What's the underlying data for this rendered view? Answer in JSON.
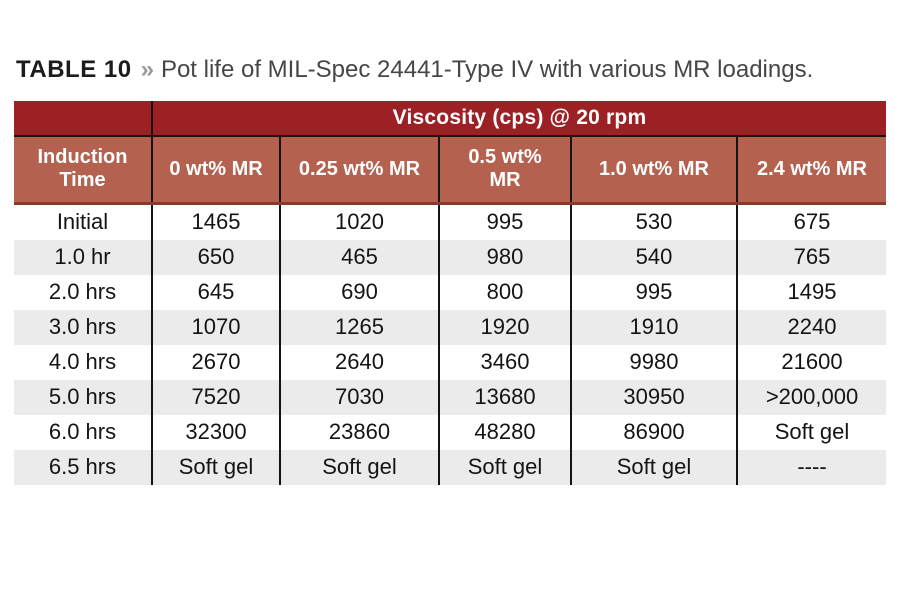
{
  "title": {
    "label": "TABLE 10",
    "separator": "»",
    "text": "Pot life of MIL-Spec 24441-Type IV with various MR loadings."
  },
  "chart_data": {
    "type": "table",
    "title": "Pot life of MIL-Spec 24441-Type IV with various MR loadings.",
    "span_header": "Viscosity (cps) @ 20 rpm",
    "columns": [
      "Induction\nTime",
      "0 wt% MR",
      "0.25 wt% MR",
      "0.5 wt%\nMR",
      "1.0 wt% MR",
      "2.4 wt% MR"
    ],
    "rows": [
      [
        "Initial",
        "1465",
        "1020",
        "995",
        "530",
        "675"
      ],
      [
        "1.0 hr",
        "650",
        "465",
        "980",
        "540",
        "765"
      ],
      [
        "2.0 hrs",
        "645",
        "690",
        "800",
        "995",
        "1495"
      ],
      [
        "3.0 hrs",
        "1070",
        "1265",
        "1920",
        "1910",
        "2240"
      ],
      [
        "4.0 hrs",
        "2670",
        "2640",
        "3460",
        "9980",
        "21600"
      ],
      [
        "5.0 hrs",
        "7520",
        "7030",
        "13680",
        "30950",
        ">200,000"
      ],
      [
        "6.0 hrs",
        "32300",
        "23860",
        "48280",
        "86900",
        "Soft gel"
      ],
      [
        "6.5 hrs",
        "Soft gel",
        "Soft gel",
        "Soft gel",
        "Soft gel",
        "----"
      ]
    ]
  },
  "colors": {
    "header_dark_red": "#9d2025",
    "header_terracotta": "#b4614f",
    "header_bottom_divider": "#8a3a2b",
    "row_stripe_gray": "#ebebeb",
    "border_black": "#141414",
    "title_separator_gray": "#9b9b9b"
  }
}
